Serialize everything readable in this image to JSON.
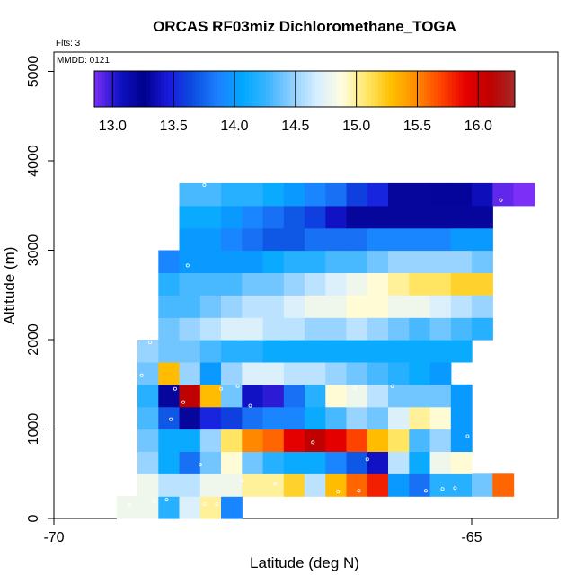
{
  "chart_data": {
    "type": "heatmap",
    "title": "ORCAS RF03miz Dichloromethane_TOGA",
    "flts_label": "Flts: 3",
    "date_label": "MMDD: 0121",
    "xlabel": "Latitude (deg N)",
    "ylabel": "Altitude (m)",
    "xlim": [
      -70,
      -64
    ],
    "ylim": [
      0,
      5200
    ],
    "x_ticks": [
      -70,
      -65
    ],
    "x_tick_labels": [
      "-70",
      "-65"
    ],
    "y_ticks": [
      0,
      1000,
      2000,
      3000,
      4000,
      5000
    ],
    "y_tick_labels": [
      "0",
      "1000",
      "2000",
      "3000",
      "4000",
      "5000"
    ],
    "colorbar": {
      "min": 12.85,
      "max": 16.3,
      "ticks": [
        13.0,
        13.5,
        14.0,
        14.5,
        15.0,
        15.5,
        16.0
      ],
      "tick_labels": [
        "13.0",
        "13.5",
        "14.0",
        "14.5",
        "15.0",
        "15.5",
        "16.0"
      ],
      "colors": [
        "#7b2ff7",
        "#1212c8",
        "#00008b",
        "#1a1add",
        "#0b4fe0",
        "#1e7fff",
        "#00a8ff",
        "#3cb4ff",
        "#8fd0ff",
        "#d6eeff",
        "#fffde0",
        "#ffe86a",
        "#ffc000",
        "#ff8c00",
        "#ff4500",
        "#e60000",
        "#c00000",
        "#a52a2a"
      ]
    },
    "cell_size": {
      "lat": 0.25,
      "alt": 250
    },
    "rows": [
      {
        "alt": 125,
        "lat_start": -69.25,
        "values": [
          14.8,
          14.8,
          14.2,
          14.7,
          15.0,
          13.9
        ]
      },
      {
        "alt": 375,
        "lat_start": -69.0,
        "values": [
          14.8,
          14.6,
          14.6,
          14.8,
          14.8,
          15.0,
          15.0,
          15.2,
          14.6,
          15.3,
          15.6,
          15.8,
          14.0,
          13.8,
          14.2,
          14.2,
          14.4,
          15.6
        ]
      },
      {
        "alt": 625,
        "lat_start": -69.0,
        "values": [
          14.5,
          14.1,
          13.8,
          14.4,
          14.9,
          14.4,
          14.2,
          14.1,
          14.1,
          13.9,
          13.7,
          13.4,
          14.6,
          14.1,
          14.8,
          14.9
        ]
      },
      {
        "alt": 875,
        "lat_start": -69.0,
        "values": [
          14.4,
          14.1,
          14.1,
          14.5,
          15.1,
          15.5,
          15.6,
          15.9,
          16.1,
          15.9,
          15.7,
          15.3,
          15.1,
          14.3,
          14.5,
          14.0
        ]
      },
      {
        "alt": 1125,
        "lat_start": -69.0,
        "values": [
          14.3,
          13.7,
          13.3,
          13.5,
          13.6,
          13.8,
          13.9,
          13.9,
          14.1,
          14.3,
          14.5,
          14.4,
          14.7,
          15.0,
          14.9,
          14.0
        ]
      },
      {
        "alt": 1375,
        "lat_start": -69.0,
        "values": [
          14.2,
          13.3,
          16.1,
          15.3,
          14.4,
          13.4,
          13.0,
          13.8,
          14.2,
          14.9,
          14.8,
          14.6,
          14.4,
          14.4,
          14.4,
          14.0
        ]
      },
      {
        "alt": 1625,
        "lat_start": -69.0,
        "values": [
          14.4,
          15.3,
          14.5,
          14.0,
          14.5,
          14.7,
          14.7,
          14.6,
          14.6,
          14.5,
          14.4,
          14.3,
          14.2,
          14.1,
          14.0
        ]
      },
      {
        "alt": 1875,
        "lat_start": -69.0,
        "values": [
          14.5,
          14.4,
          14.4,
          14.3,
          14.2,
          14.2,
          14.1,
          14.1,
          14.1,
          14.1,
          14.1,
          14.1,
          14.1,
          14.1,
          14.1,
          14.1
        ]
      },
      {
        "alt": 2125,
        "lat_start": -68.75,
        "values": [
          14.4,
          14.5,
          14.6,
          14.7,
          14.7,
          14.6,
          14.6,
          14.5,
          14.5,
          14.6,
          14.5,
          14.4,
          14.3,
          14.4,
          14.3,
          14.2
        ]
      },
      {
        "alt": 2375,
        "lat_start": -68.75,
        "values": [
          14.3,
          14.3,
          14.4,
          14.5,
          14.6,
          14.6,
          14.7,
          14.8,
          14.8,
          14.9,
          14.9,
          14.8,
          14.8,
          14.7,
          14.6,
          14.5
        ]
      },
      {
        "alt": 2625,
        "lat_start": -68.75,
        "values": [
          14.2,
          14.3,
          14.3,
          14.3,
          14.4,
          14.4,
          14.5,
          14.6,
          14.7,
          14.8,
          14.9,
          15.0,
          15.1,
          15.1,
          15.2,
          15.2
        ]
      },
      {
        "alt": 2875,
        "lat_start": -68.75,
        "values": [
          13.9,
          14.0,
          14.0,
          14.0,
          14.0,
          14.1,
          14.2,
          14.2,
          14.3,
          14.3,
          14.4,
          14.5,
          14.5,
          14.5,
          14.5,
          14.4
        ]
      },
      {
        "alt": 3125,
        "lat_start": -68.5,
        "values": [
          14.0,
          14.0,
          13.9,
          13.8,
          13.7,
          13.7,
          13.8,
          13.8,
          13.8,
          13.9,
          13.9,
          13.9,
          13.9,
          14.0,
          14.0
        ]
      },
      {
        "alt": 3375,
        "lat_start": -68.5,
        "values": [
          14.1,
          14.1,
          14.0,
          13.9,
          13.8,
          13.7,
          13.6,
          13.4,
          13.3,
          13.3,
          13.3,
          13.3,
          13.3,
          13.3,
          13.3
        ]
      },
      {
        "alt": 3625,
        "lat_start": -68.5,
        "values": [
          14.3,
          14.3,
          14.2,
          14.2,
          14.1,
          14.0,
          13.9,
          13.8,
          13.6,
          13.5,
          13.3,
          13.3,
          13.2,
          13.2,
          13.1,
          12.9,
          12.8
        ]
      }
    ],
    "sample_points": [
      {
        "lat": -69.1,
        "alt": 150
      },
      {
        "lat": -68.8,
        "alt": 190
      },
      {
        "lat": -68.65,
        "alt": 210
      },
      {
        "lat": -68.2,
        "alt": 160
      },
      {
        "lat": -68.05,
        "alt": 160
      },
      {
        "lat": -67.75,
        "alt": 420
      },
      {
        "lat": -67.35,
        "alt": 390
      },
      {
        "lat": -66.9,
        "alt": 850
      },
      {
        "lat": -66.6,
        "alt": 300
      },
      {
        "lat": -66.35,
        "alt": 310
      },
      {
        "lat": -66.25,
        "alt": 660
      },
      {
        "lat": -65.55,
        "alt": 310
      },
      {
        "lat": -65.35,
        "alt": 330
      },
      {
        "lat": -65.2,
        "alt": 340
      },
      {
        "lat": -65.05,
        "alt": 920
      },
      {
        "lat": -68.55,
        "alt": 1450
      },
      {
        "lat": -68.0,
        "alt": 1450
      },
      {
        "lat": -67.8,
        "alt": 1480
      },
      {
        "lat": -67.65,
        "alt": 1260
      },
      {
        "lat": -66.4,
        "alt": 1460
      },
      {
        "lat": -65.95,
        "alt": 1480
      },
      {
        "lat": -69.05,
        "alt": 1090
      },
      {
        "lat": -68.6,
        "alt": 1110
      },
      {
        "lat": -68.25,
        "alt": 600
      },
      {
        "lat": -68.85,
        "alt": 1970
      },
      {
        "lat": -68.95,
        "alt": 1600
      },
      {
        "lat": -68.4,
        "alt": 2830
      },
      {
        "lat": -68.2,
        "alt": 3730
      },
      {
        "lat": -64.65,
        "alt": 3560
      },
      {
        "lat": -64.9,
        "alt": 1800
      },
      {
        "lat": -69.2,
        "alt": 380
      },
      {
        "lat": -68.45,
        "alt": 1300
      }
    ]
  }
}
